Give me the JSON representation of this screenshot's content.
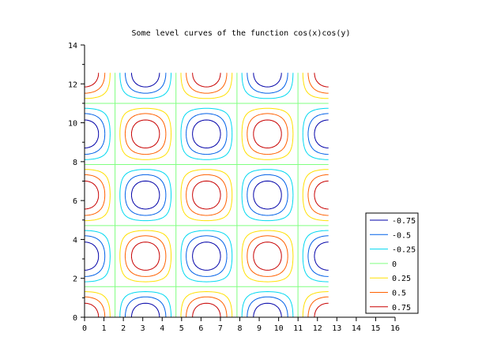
{
  "chart_data": {
    "type": "contour",
    "title": "Some level curves of the function cos(x)cos(y)",
    "function": "cos(x)cos(y)",
    "xlabel": "",
    "ylabel": "",
    "xlim": [
      0,
      16
    ],
    "ylim": [
      0,
      14
    ],
    "domain_x": [
      0,
      12.566
    ],
    "domain_y": [
      0,
      12.566
    ],
    "xticks": [
      "0",
      "1",
      "2",
      "3",
      "4",
      "5",
      "6",
      "7",
      "8",
      "9",
      "10",
      "11",
      "12",
      "13",
      "14",
      "15",
      "16"
    ],
    "yticks": [
      "0",
      "2",
      "4",
      "6",
      "8",
      "10",
      "12",
      "14"
    ],
    "levels": [
      -0.75,
      -0.5,
      -0.25,
      0,
      0.25,
      0.5,
      0.75
    ],
    "legend": {
      "placement": "bottom-right",
      "entries": [
        "-0.75",
        "-0.5",
        "-0.25",
        "0",
        "0.25",
        "0.5",
        "0.75"
      ],
      "colors": [
        "#0000a8",
        "#0060e8",
        "#00d8f0",
        "#80ff80",
        "#ffe000",
        "#ff6000",
        "#c80000"
      ]
    }
  }
}
